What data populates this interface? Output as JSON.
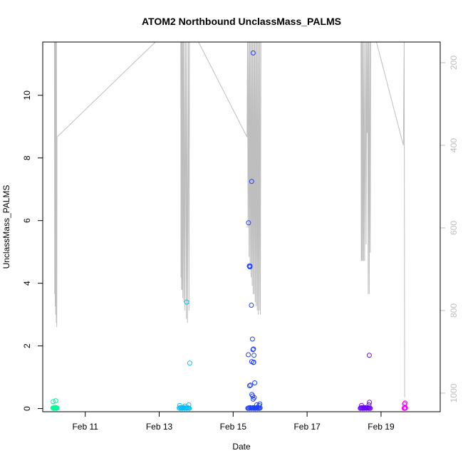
{
  "chart_data": {
    "type": "scatter",
    "title": "ATOM2 Northbound UnclassMass_PALMS",
    "xlabel": "Date",
    "ylabel": "UnclassMass_PALMS",
    "xlim": [
      "2017-02-09 20:24",
      "2017-02-20 14:24"
    ],
    "ylim": [
      -0.1,
      11.7
    ],
    "x_ticks": [
      {
        "label": "Feb 11",
        "date": "2017-02-11"
      },
      {
        "label": "Feb 13",
        "date": "2017-02-13"
      },
      {
        "label": "Feb 15",
        "date": "2017-02-15"
      },
      {
        "label": "Feb 17",
        "date": "2017-02-17"
      },
      {
        "label": "Feb 19",
        "date": "2017-02-19"
      }
    ],
    "y_ticks": [
      0,
      2,
      4,
      6,
      8,
      10
    ],
    "right_axis": {
      "label": "",
      "reversed": true,
      "lim": [
        1045,
        150
      ],
      "ticks": [
        200,
        400,
        600,
        800,
        1000
      ],
      "color": "#bebebe"
    },
    "altitude_trace": {
      "color": "#bebebe",
      "points": [
        [
          "2017-02-10 04:00",
          150
        ],
        [
          "2017-02-10 04:10",
          760
        ],
        [
          "2017-02-10 04:20",
          150
        ],
        [
          "2017-02-10 04:30",
          790
        ],
        [
          "2017-02-10 04:40",
          150
        ],
        [
          "2017-02-10 04:50",
          810
        ],
        [
          "2017-02-10 05:00",
          150
        ],
        [
          "2017-02-10 05:10",
          830
        ],
        [
          "2017-02-10 05:20",
          150
        ],
        [
          "2017-02-10 05:30",
          840
        ],
        [
          "2017-02-10 05:40",
          380
        ],
        [
          "2017-02-12 21:30",
          150
        ],
        [
          "2017-02-13 14:00",
          150
        ],
        [
          "2017-02-13 14:10",
          720
        ],
        [
          "2017-02-13 14:20",
          150
        ],
        [
          "2017-02-13 14:30",
          750
        ],
        [
          "2017-02-13 14:40",
          150
        ],
        [
          "2017-02-13 14:50",
          750
        ],
        [
          "2017-02-13 15:10",
          150
        ],
        [
          "2017-02-13 15:20",
          770
        ],
        [
          "2017-02-13 15:40",
          150
        ],
        [
          "2017-02-13 16:00",
          780
        ],
        [
          "2017-02-13 16:20",
          150
        ],
        [
          "2017-02-13 16:40",
          800
        ],
        [
          "2017-02-13 17:10",
          150
        ],
        [
          "2017-02-13 17:40",
          820
        ],
        [
          "2017-02-13 18:00",
          150
        ],
        [
          "2017-02-13 18:20",
          830
        ],
        [
          "2017-02-13 19:00",
          150
        ],
        [
          "2017-02-13 19:20",
          800
        ],
        [
          "2017-02-13 19:40",
          150
        ],
        [
          "2017-02-14 01:30",
          150
        ],
        [
          "2017-02-15 09:00",
          380
        ],
        [
          "2017-02-15 09:20",
          150
        ],
        [
          "2017-02-15 09:40",
          600
        ],
        [
          "2017-02-15 10:00",
          150
        ],
        [
          "2017-02-15 10:20",
          670
        ],
        [
          "2017-02-15 10:40",
          150
        ],
        [
          "2017-02-15 11:00",
          700
        ],
        [
          "2017-02-15 11:20",
          150
        ],
        [
          "2017-02-15 11:40",
          720
        ],
        [
          "2017-02-15 12:00",
          150
        ],
        [
          "2017-02-15 12:20",
          740
        ],
        [
          "2017-02-15 12:40",
          150
        ],
        [
          "2017-02-15 13:00",
          760
        ],
        [
          "2017-02-15 13:20",
          150
        ],
        [
          "2017-02-15 13:40",
          760
        ],
        [
          "2017-02-15 14:00",
          150
        ],
        [
          "2017-02-15 14:20",
          780
        ],
        [
          "2017-02-15 14:40",
          150
        ],
        [
          "2017-02-15 15:00",
          790
        ],
        [
          "2017-02-15 15:20",
          150
        ],
        [
          "2017-02-15 15:40",
          800
        ],
        [
          "2017-02-15 16:00",
          150
        ],
        [
          "2017-02-15 16:20",
          810
        ],
        [
          "2017-02-15 16:40",
          150
        ],
        [
          "2017-02-15 17:00",
          800
        ],
        [
          "2017-02-15 17:20",
          150
        ],
        [
          "2017-02-15 17:40",
          810
        ],
        [
          "2017-02-15 18:00",
          150
        ],
        [
          "2017-02-18 11:00",
          150
        ],
        [
          "2017-02-18 11:10",
          680
        ],
        [
          "2017-02-18 11:20",
          150
        ],
        [
          "2017-02-18 11:30",
          680
        ],
        [
          "2017-02-18 11:40",
          150
        ],
        [
          "2017-02-18 12:00",
          680
        ],
        [
          "2017-02-18 12:20",
          150
        ],
        [
          "2017-02-18 12:40",
          680
        ],
        [
          "2017-02-18 13:00",
          150
        ],
        [
          "2017-02-18 13:20",
          680
        ],
        [
          "2017-02-18 14:00",
          150
        ],
        [
          "2017-02-18 14:20",
          640
        ],
        [
          "2017-02-18 14:40",
          150
        ],
        [
          "2017-02-18 15:00",
          370
        ],
        [
          "2017-02-18 15:20",
          150
        ],
        [
          "2017-02-18 15:40",
          760
        ],
        [
          "2017-02-18 16:00",
          150
        ],
        [
          "2017-02-18 16:20",
          760
        ],
        [
          "2017-02-18 16:40",
          150
        ],
        [
          "2017-02-18 17:00",
          660
        ],
        [
          "2017-02-18 17:20",
          150
        ],
        [
          "2017-02-18 21:00",
          150
        ],
        [
          "2017-02-19 14:30",
          400
        ],
        [
          "2017-02-19 15:00",
          150
        ],
        [
          "2017-02-19 15:20",
          1010
        ]
      ]
    },
    "series": [
      {
        "color": "#00fa9a",
        "x": [
          "2017-02-10 03:00",
          "2017-02-10 03:20",
          "2017-02-10 03:40",
          "2017-02-10 04:00",
          "2017-02-10 04:10",
          "2017-02-10 04:20",
          "2017-02-10 04:30",
          "2017-02-10 04:40",
          "2017-02-10 04:50",
          "2017-02-10 05:00",
          "2017-02-10 05:10",
          "2017-02-10 05:20",
          "2017-02-10 05:40",
          "2017-02-10 03:10",
          "2017-02-10 04:45"
        ],
        "y": [
          0.02,
          0.01,
          0.03,
          0.02,
          0.01,
          0.02,
          0.03,
          0.01,
          0.02,
          0.03,
          0.02,
          0.01,
          0.02,
          0.22,
          0.25
        ]
      },
      {
        "color": "#00bfff",
        "x": [
          "2017-02-13 13:00",
          "2017-02-13 13:30",
          "2017-02-13 14:00",
          "2017-02-13 14:30",
          "2017-02-13 15:00",
          "2017-02-13 15:30",
          "2017-02-13 16:00",
          "2017-02-13 16:30",
          "2017-02-13 17:00",
          "2017-02-13 17:30",
          "2017-02-13 18:00",
          "2017-02-13 18:30",
          "2017-02-13 19:00",
          "2017-02-13 19:30",
          "2017-02-13 13:20",
          "2017-02-13 16:40",
          "2017-02-13 19:10",
          "2017-02-13 17:50",
          "2017-02-13 19:50"
        ],
        "y": [
          0.02,
          0.01,
          0.03,
          0.02,
          0.01,
          0.02,
          0.03,
          0.01,
          0.02,
          0.02,
          0.01,
          0.03,
          0.02,
          0.01,
          0.1,
          0.08,
          0.12,
          3.4,
          1.45
        ]
      },
      {
        "color": "#1e40ff",
        "x": [
          "2017-02-15 09:30",
          "2017-02-15 10:00",
          "2017-02-15 10:30",
          "2017-02-15 11:00",
          "2017-02-15 11:30",
          "2017-02-15 12:00",
          "2017-02-15 12:30",
          "2017-02-15 13:00",
          "2017-02-15 13:30",
          "2017-02-15 14:00",
          "2017-02-15 14:30",
          "2017-02-15 15:00",
          "2017-02-15 15:30",
          "2017-02-15 16:00",
          "2017-02-15 16:30",
          "2017-02-15 17:00",
          "2017-02-15 17:30",
          "2017-02-15 13:00",
          "2017-02-15 12:00",
          "2017-02-15 10:00",
          "2017-02-15 10:30",
          "2017-02-15 10:50",
          "2017-02-15 11:00",
          "2017-02-15 11:50",
          "2017-02-15 12:30",
          "2017-02-15 12:50",
          "2017-02-15 13:10",
          "2017-02-15 13:30",
          "2017-02-15 12:00",
          "2017-02-15 13:20",
          "2017-02-15 13:10",
          "2017-02-15 09:50",
          "2017-02-15 10:40",
          "2017-02-15 11:20",
          "2017-02-15 12:10",
          "2017-02-15 14:00",
          "2017-02-15 13:40",
          "2017-02-15 12:40",
          "2017-02-15 13:00",
          "2017-02-15 15:20",
          "2017-02-15 16:50",
          "2017-02-15 17:20"
        ],
        "y": [
          0.01,
          0.02,
          0.01,
          0.03,
          0.02,
          0.01,
          0.02,
          0.03,
          0.01,
          0.02,
          0.01,
          0.02,
          0.03,
          0.01,
          0.02,
          0.01,
          0.02,
          11.35,
          7.25,
          5.93,
          4.55,
          4.52,
          4.55,
          3.3,
          2.22,
          1.88,
          1.9,
          1.7,
          1.5,
          1.48,
          1.47,
          1.72,
          0.73,
          0.75,
          0.45,
          0.82,
          0.35,
          0.4,
          0.3,
          0.12,
          0.1,
          0.15
        ]
      },
      {
        "color": "#6a00ff",
        "x": [
          "2017-02-18 10:30",
          "2017-02-18 11:00",
          "2017-02-18 11:30",
          "2017-02-18 12:00",
          "2017-02-18 12:30",
          "2017-02-18 13:00",
          "2017-02-18 13:30",
          "2017-02-18 14:00",
          "2017-02-18 14:30",
          "2017-02-18 15:00",
          "2017-02-18 15:30",
          "2017-02-18 16:00",
          "2017-02-18 16:30",
          "2017-02-18 17:00",
          "2017-02-18 11:20",
          "2017-02-18 16:10",
          "2017-02-18 16:30",
          "2017-02-18 16:20"
        ],
        "y": [
          0.01,
          0.02,
          0.03,
          0.01,
          0.02,
          0.01,
          0.03,
          0.02,
          0.01,
          0.02,
          0.03,
          0.01,
          0.02,
          0.01,
          0.1,
          0.12,
          0.2,
          1.7
        ]
      },
      {
        "color": "#ff00ff",
        "x": [
          "2017-02-19 15:00",
          "2017-02-19 15:10",
          "2017-02-19 15:20",
          "2017-02-19 15:30",
          "2017-02-19 15:40",
          "2017-02-19 15:50",
          "2017-02-19 15:15",
          "2017-02-19 15:35"
        ],
        "y": [
          0.01,
          0.02,
          0.03,
          0.02,
          0.01,
          0.02,
          0.15,
          0.18
        ]
      }
    ]
  }
}
